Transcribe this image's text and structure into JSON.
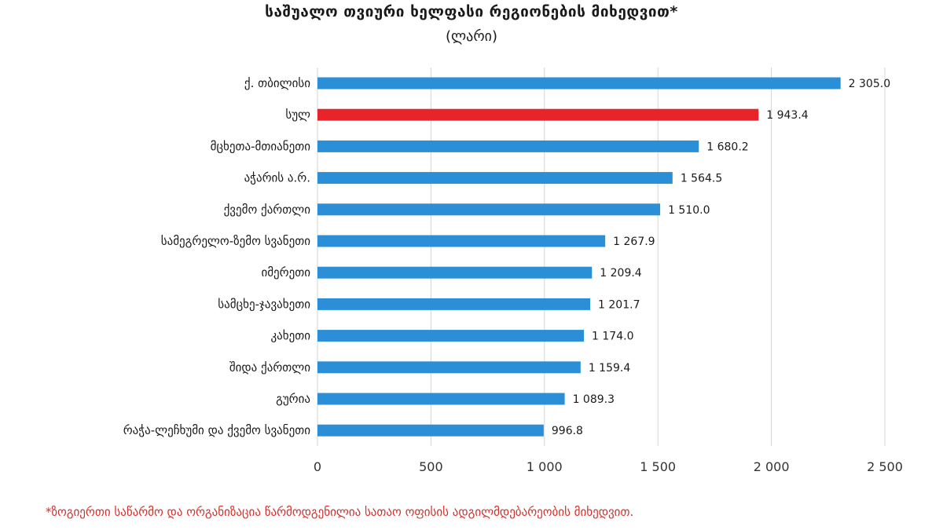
{
  "chart_data": {
    "type": "bar",
    "orientation": "horizontal",
    "title": "საშუალო თვიური ხელფასი რეგიონების მიხედვით*",
    "subtitle": "(ლარი)",
    "categories": [
      "ქ. თბილისი",
      "სულ",
      "მცხეთა-მთიანეთი",
      "აჭარის ა.რ.",
      "ქვემო ქართლი",
      "სამეგრელო-ზემო სვანეთი",
      "იმერეთი",
      "სამცხე-ჯავახეთი",
      "კახეთი",
      "შიდა ქართლი",
      "გურია",
      "რაჭა-ლეჩხუმი და ქვემო სვანეთი"
    ],
    "values": [
      2305.0,
      1943.4,
      1680.2,
      1564.5,
      1510.0,
      1267.9,
      1209.4,
      1201.7,
      1174.0,
      1159.4,
      1089.3,
      996.8
    ],
    "value_labels": [
      "2 305.0",
      "1 943.4",
      "1 680.2",
      "1 564.5",
      "1 510.0",
      "1 267.9",
      "1 209.4",
      "1 201.7",
      "1 174.0",
      "1 159.4",
      "1 089.3",
      "996.8"
    ],
    "highlight_index": 1,
    "xlim": [
      0,
      2500
    ],
    "xticks": [
      0,
      500,
      1000,
      1500,
      2000,
      2500
    ],
    "xtick_labels": [
      "0",
      "500",
      "1 000",
      "1 500",
      "2 000",
      "2 500"
    ],
    "grid": true,
    "colors": {
      "bar": "#2a8fd6",
      "highlight": "#e8242a",
      "grid": "#d4d4d4"
    }
  },
  "footnote": "*ზოგიერთი საწარმო და ორგანიზაცია წარმოდგენილია სათაო ოფისის ადგილმდებარეობის მიხედვით."
}
